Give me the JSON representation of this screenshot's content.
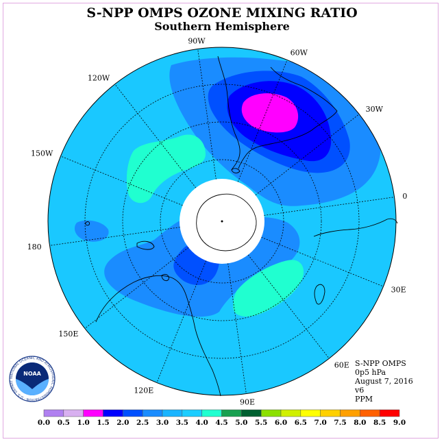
{
  "title": "S-NPP OMPS OZONE MIXING RATIO",
  "subtitle": "Southern Hemisphere",
  "longitude_labels": [
    {
      "lon": "90W",
      "deg": -90
    },
    {
      "lon": "60W",
      "deg": -60
    },
    {
      "lon": "30W",
      "deg": -30
    },
    {
      "lon": "0",
      "deg": 0
    },
    {
      "lon": "30E",
      "deg": 30
    },
    {
      "lon": "60E",
      "deg": 60
    },
    {
      "lon": "90E",
      "deg": 90
    },
    {
      "lon": "120E",
      "deg": 120
    },
    {
      "lon": "150E",
      "deg": 150
    },
    {
      "lon": "180",
      "deg": 180
    },
    {
      "lon": "150W",
      "deg": -150
    },
    {
      "lon": "120W",
      "deg": -120
    }
  ],
  "info": {
    "instrument": "S-NPP OMPS",
    "level": "0p5 hPa",
    "date": "August 7, 2016",
    "version": "v6",
    "units": "PPM"
  },
  "colorbar": {
    "ticks": [
      "0.0",
      "0.5",
      "1.0",
      "1.5",
      "2.0",
      "2.5",
      "3.0",
      "3.5",
      "4.0",
      "4.5",
      "5.0",
      "5.5",
      "6.0",
      "6.5",
      "7.0",
      "7.5",
      "8.0",
      "8.5",
      "9.0"
    ],
    "colors": [
      "#b080f0",
      "#d8b0f0",
      "#ff00ff",
      "#0000ff",
      "#0050ff",
      "#1a8cff",
      "#1ab4ff",
      "#1ccdff",
      "#20ffd0",
      "#18a050",
      "#006030",
      "#8ce000",
      "#d0f000",
      "#ffff00",
      "#ffd000",
      "#ffa000",
      "#ff6000",
      "#ff0000",
      "#805030"
    ]
  },
  "field": {
    "background_color": "#1ac8ff",
    "level_colors": {
      "1.5": "#ff00ff",
      "2.0": "#0000ff",
      "2.5": "#0050ff",
      "3.0": "#1a8cff",
      "3.5": "#1ccdff",
      "4.0": "#20ffd0"
    }
  },
  "logo": {
    "text": "NOAA",
    "ring_text": "NATIONAL OCEANIC AND ATMOSPHERIC ADMINISTRATION · U.S. DEPARTMENT OF COMMERCE"
  }
}
